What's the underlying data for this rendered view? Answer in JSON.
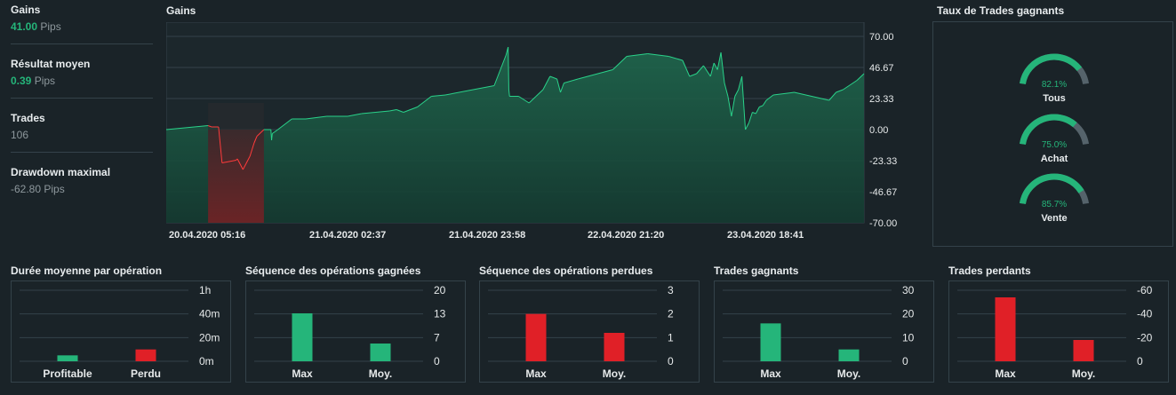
{
  "stats": [
    {
      "label": "Gains",
      "value": "41.00",
      "unit": "Pips",
      "tone": "pos"
    },
    {
      "label": "Résultat moyen",
      "value": "0.39",
      "unit": "Pips",
      "tone": "pos"
    },
    {
      "label": "Trades",
      "value": "106",
      "unit": "",
      "tone": "neutral"
    },
    {
      "label": "Drawdown maximal",
      "value": "-62.80",
      "unit": "Pips",
      "tone": "neutral"
    }
  ],
  "main_chart_title": "Gains",
  "gauge_title": "Taux de Trades gagnants",
  "gauges": [
    {
      "pct_label": "82.1%",
      "label": "Tous",
      "value": 0.821
    },
    {
      "pct_label": "75.0%",
      "label": "Achat",
      "value": 0.75
    },
    {
      "pct_label": "85.7%",
      "label": "Vente",
      "value": 0.857
    }
  ],
  "mini_titles": [
    "Durée moyenne par opération",
    "Séquence des opérations gagnées",
    "Séquence des opérations perdues",
    "Trades gagnants",
    "Trades perdants"
  ],
  "colors": {
    "green": "#25b57a",
    "red": "#e02027",
    "bg": "#1a2328",
    "grid": "#34424a"
  },
  "chart_data": [
    {
      "type": "area",
      "title": "Gains",
      "y_ticks": [
        "70.00",
        "46.67",
        "23.33",
        "0.00",
        "-23.33",
        "-46.67",
        "-70.00"
      ],
      "ylim": [
        -70,
        70
      ],
      "x_ticks": [
        "20.04.2020 05:16",
        "21.04.2020 02:37",
        "21.04.2020 23:58",
        "22.04.2020 21:20",
        "23.04.2020 18:41"
      ],
      "x": [
        0,
        0.06,
        0.065,
        0.075,
        0.08,
        0.1,
        0.102,
        0.11,
        0.12,
        0.123,
        0.126,
        0.13,
        0.14,
        0.15,
        0.151,
        0.152,
        0.16,
        0.18,
        0.2,
        0.23,
        0.26,
        0.28,
        0.3,
        0.32,
        0.33,
        0.34,
        0.36,
        0.38,
        0.4,
        0.47,
        0.487,
        0.488,
        0.49,
        0.491,
        0.492,
        0.505,
        0.52,
        0.53,
        0.54,
        0.55,
        0.56,
        0.565,
        0.57,
        0.59,
        0.64,
        0.66,
        0.69,
        0.72,
        0.74,
        0.75,
        0.76,
        0.77,
        0.78,
        0.785,
        0.79,
        0.795,
        0.8,
        0.805,
        0.81,
        0.815,
        0.82,
        0.825,
        0.83,
        0.835,
        0.84,
        0.845,
        0.85,
        0.855,
        0.86,
        0.87,
        0.9,
        0.95,
        0.96,
        0.97,
        0.99,
        1.0
      ],
      "y": [
        0,
        3,
        2,
        2,
        -25,
        -23,
        -22,
        -30,
        -20,
        -15,
        -10,
        -5,
        0,
        0,
        -8,
        -3,
        0,
        8,
        8,
        10,
        10,
        12,
        13,
        14,
        15,
        13,
        17,
        25,
        26,
        33,
        56,
        58,
        62,
        30,
        25,
        25,
        20,
        25,
        30,
        40,
        38,
        28,
        35,
        38,
        45,
        55,
        57,
        55,
        52,
        40,
        42,
        48,
        40,
        50,
        45,
        58,
        35,
        25,
        10,
        25,
        30,
        40,
        0,
        5,
        13,
        12,
        17,
        18,
        22,
        26,
        28,
        22,
        28,
        30,
        37,
        42
      ],
      "neg_range": [
        0.06,
        0.14
      ]
    },
    {
      "type": "bar",
      "title": "Durée moyenne par opération",
      "categories": [
        "Profitable",
        "Perdu"
      ],
      "values": [
        5,
        10
      ],
      "y_ticks": [
        "1h",
        "40m",
        "20m",
        "0m"
      ],
      "ylim": [
        0,
        60
      ],
      "colors": [
        "green",
        "red"
      ]
    },
    {
      "type": "bar",
      "title": "Séquence des opérations gagnées",
      "categories": [
        "Max",
        "Moy."
      ],
      "values": [
        13.5,
        5
      ],
      "y_ticks": [
        "20",
        "13",
        "7",
        "0"
      ],
      "ylim": [
        0,
        20
      ],
      "colors": [
        "green",
        "green"
      ]
    },
    {
      "type": "bar",
      "title": "Séquence des opérations perdues",
      "categories": [
        "Max",
        "Moy."
      ],
      "values": [
        2,
        1.2
      ],
      "y_ticks": [
        "3",
        "2",
        "1",
        "0"
      ],
      "ylim": [
        0,
        3
      ],
      "colors": [
        "red",
        "red"
      ]
    },
    {
      "type": "bar",
      "title": "Trades gagnants",
      "categories": [
        "Max",
        "Moy."
      ],
      "values": [
        16,
        5
      ],
      "y_ticks": [
        "30",
        "20",
        "10",
        "0"
      ],
      "ylim": [
        0,
        30
      ],
      "colors": [
        "green",
        "green"
      ]
    },
    {
      "type": "bar",
      "title": "Trades perdants",
      "categories": [
        "Max",
        "Moy."
      ],
      "values": [
        -54,
        -18
      ],
      "y_ticks": [
        "-60",
        "-40",
        "-20",
        "0"
      ],
      "ylim": [
        0,
        -60
      ],
      "colors": [
        "red",
        "red"
      ]
    }
  ]
}
